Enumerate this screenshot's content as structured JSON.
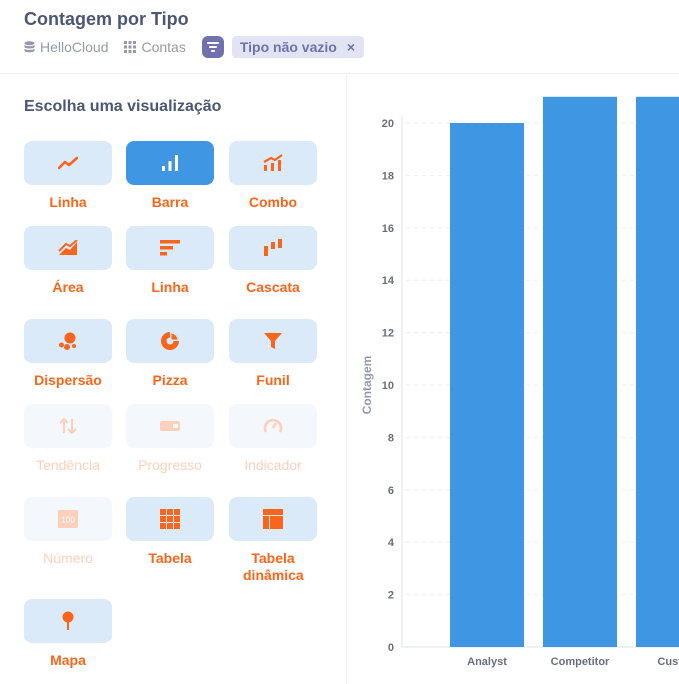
{
  "header": {
    "title": "Contagem por Tipo",
    "database": "HelloCloud",
    "table": "Contas",
    "filter": "Tipo não vazio",
    "filter_remove": "×"
  },
  "panel": {
    "title": "Escolha uma visualização",
    "options": [
      {
        "label": "Linha",
        "icon": "line-chart-icon",
        "state": "normal"
      },
      {
        "label": "Barra",
        "icon": "bar-chart-icon",
        "state": "active"
      },
      {
        "label": "Combo",
        "icon": "combo-chart-icon",
        "state": "normal"
      },
      {
        "label": "Área",
        "icon": "area-chart-icon",
        "state": "normal"
      },
      {
        "label": "Linha",
        "icon": "row-chart-icon",
        "state": "normal"
      },
      {
        "label": "Cascata",
        "icon": "waterfall-chart-icon",
        "state": "normal"
      },
      {
        "label": "Dispersão",
        "icon": "scatter-chart-icon",
        "state": "normal"
      },
      {
        "label": "Pizza",
        "icon": "pie-chart-icon",
        "state": "normal"
      },
      {
        "label": "Funil",
        "icon": "funnel-icon",
        "state": "normal"
      },
      {
        "label": "Tendência",
        "icon": "trend-icon",
        "state": "disabled"
      },
      {
        "label": "Progresso",
        "icon": "progress-icon",
        "state": "disabled"
      },
      {
        "label": "Indicador",
        "icon": "gauge-icon",
        "state": "disabled"
      },
      {
        "label": "Número",
        "icon": "number-icon",
        "state": "disabled",
        "badge": "100"
      },
      {
        "label": "Tabela",
        "icon": "table-icon",
        "state": "normal"
      },
      {
        "label": "Tabela dinâmica",
        "icon": "pivot-table-icon",
        "state": "normal"
      },
      {
        "label": "Mapa",
        "icon": "pin-map-icon",
        "state": "normal"
      }
    ]
  },
  "colors": {
    "accent": "#f9651a",
    "bar": "#3f97e3",
    "selected_bg": "#3f97e3",
    "option_bg": "#dbeaf9",
    "filter": "#7172ad"
  },
  "chart_data": {
    "type": "bar",
    "categories": [
      "Analyst",
      "Competitor",
      "Custo"
    ],
    "values": [
      20,
      21,
      21
    ],
    "ylabel": "Contagem",
    "xlabel": "",
    "ylim": [
      0,
      21
    ],
    "yticks": [
      "0",
      "2",
      "4",
      "6",
      "8",
      "10",
      "12",
      "14",
      "16",
      "18",
      "20"
    ],
    "grid": true
  }
}
